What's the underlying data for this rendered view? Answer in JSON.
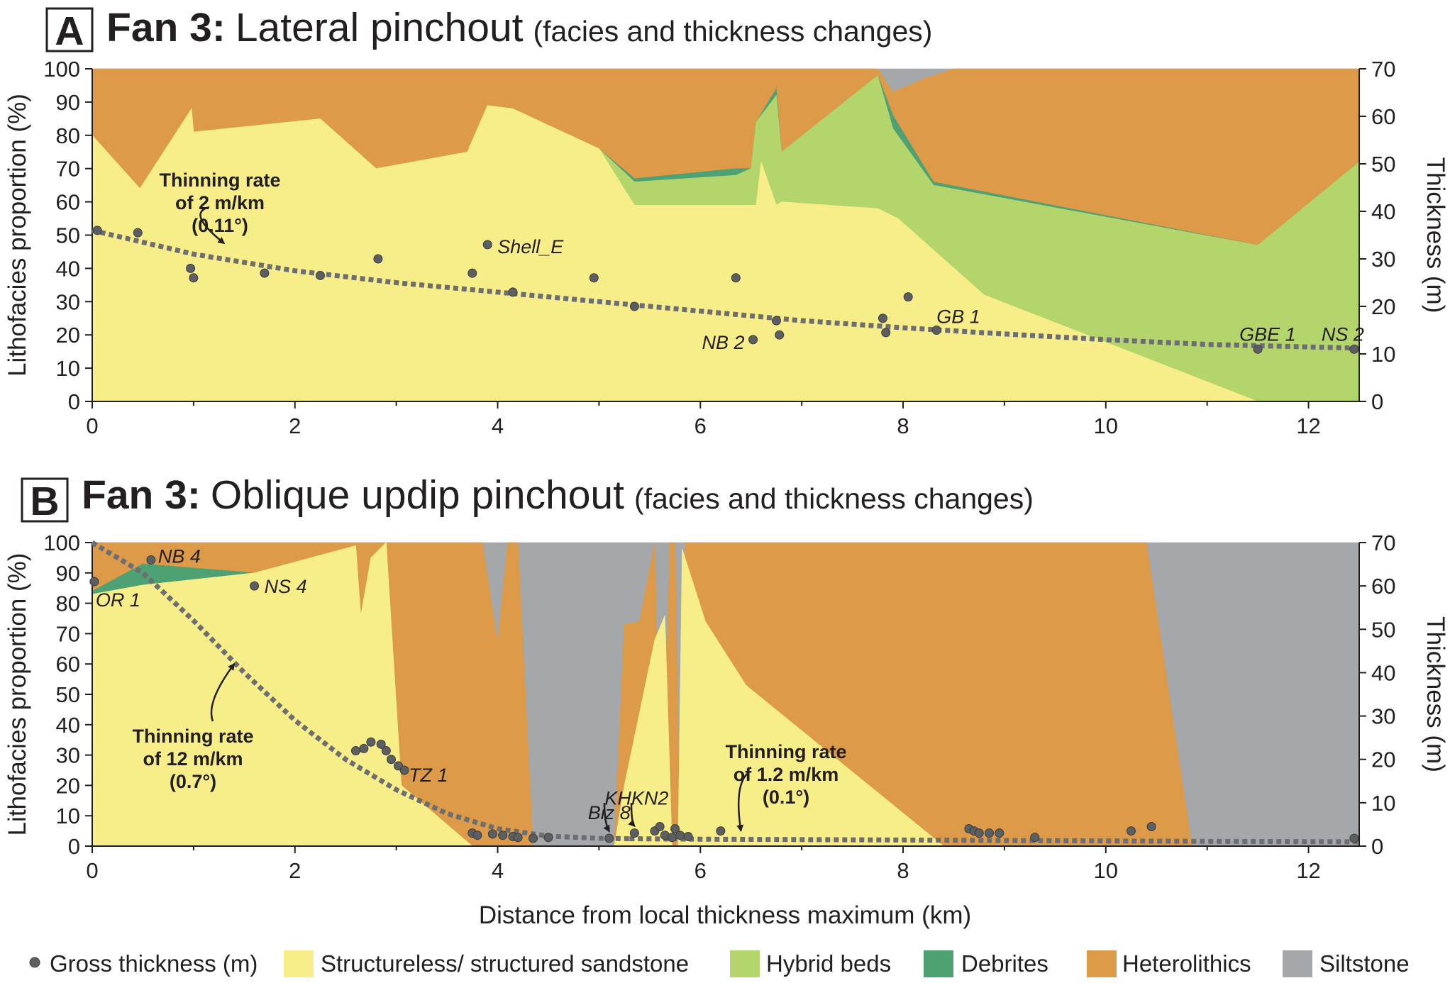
{
  "chart_data": [
    {
      "type": "area",
      "panel_letter": "A",
      "title_bold": "Fan 3:",
      "title": "Lateral pinchout",
      "subtitle": "(facies and thickness changes)",
      "xlabel": "Distance from local thickness maximum (km)",
      "ylabel_left": "Lithofacies proportion (%)",
      "ylabel_right": "Thickness (m)",
      "xlim": [
        0,
        12.5
      ],
      "ylim_left": [
        0,
        100
      ],
      "ylim_right": [
        0,
        70
      ],
      "xticks": [
        "0",
        "2",
        "4",
        "6",
        "8",
        "10",
        "12"
      ],
      "yticks_left": [
        "0",
        "10",
        "20",
        "30",
        "40",
        "50",
        "60",
        "70",
        "80",
        "90",
        "100"
      ],
      "yticks_right": [
        "0",
        "10",
        "20",
        "30",
        "40",
        "50",
        "60",
        "70"
      ],
      "grid": false,
      "facies_boundaries": {
        "sandstone_top": [
          [
            0,
            80
          ],
          [
            0.47,
            64
          ],
          [
            0.98,
            88
          ],
          [
            1.0,
            81
          ],
          [
            2.25,
            85
          ],
          [
            2.8,
            70
          ],
          [
            3.7,
            75
          ],
          [
            3.9,
            89
          ],
          [
            4.15,
            88
          ],
          [
            5.0,
            76
          ],
          [
            5.35,
            59
          ],
          [
            6.55,
            59
          ],
          [
            6.6,
            72
          ],
          [
            6.75,
            59
          ],
          [
            6.8,
            60
          ],
          [
            7.75,
            58
          ],
          [
            7.95,
            55
          ],
          [
            8.8,
            32
          ],
          [
            11.5,
            0
          ],
          [
            12.5,
            0
          ]
        ],
        "hybrid_top": [
          [
            0,
            80
          ],
          [
            0.47,
            64
          ],
          [
            0.98,
            88
          ],
          [
            1.0,
            81
          ],
          [
            2.25,
            85
          ],
          [
            2.8,
            70
          ],
          [
            3.7,
            75
          ],
          [
            3.9,
            89
          ],
          [
            4.15,
            88
          ],
          [
            5.0,
            76
          ],
          [
            5.35,
            66
          ],
          [
            6.35,
            68
          ],
          [
            6.5,
            70
          ],
          [
            6.55,
            84
          ],
          [
            6.75,
            92
          ],
          [
            6.8,
            75
          ],
          [
            7.75,
            98
          ],
          [
            7.9,
            82
          ],
          [
            8.3,
            65
          ],
          [
            11.5,
            47
          ],
          [
            12.5,
            72
          ]
        ],
        "debrite_top": [
          [
            0,
            80
          ],
          [
            0.47,
            64
          ],
          [
            0.98,
            88
          ],
          [
            1.0,
            81
          ],
          [
            2.25,
            85
          ],
          [
            2.8,
            70
          ],
          [
            3.7,
            75
          ],
          [
            3.9,
            89
          ],
          [
            4.15,
            88
          ],
          [
            5.0,
            76
          ],
          [
            5.35,
            67
          ],
          [
            6.35,
            70
          ],
          [
            6.5,
            70
          ],
          [
            6.55,
            84
          ],
          [
            6.75,
            94
          ],
          [
            6.8,
            75
          ],
          [
            7.75,
            98
          ],
          [
            7.9,
            86
          ],
          [
            8.3,
            66
          ],
          [
            11.5,
            47
          ],
          [
            12.5,
            72
          ]
        ],
        "heterolithic_top": [
          [
            0,
            100
          ],
          [
            7.75,
            100
          ],
          [
            7.9,
            93
          ],
          [
            8.2,
            97
          ],
          [
            8.5,
            100
          ],
          [
            12.5,
            100
          ]
        ]
      },
      "gross_thickness_points": [
        [
          0.05,
          36
        ],
        [
          0.45,
          35.5
        ],
        [
          0.97,
          28
        ],
        [
          1.0,
          26
        ],
        [
          1.7,
          27
        ],
        [
          2.25,
          26.5
        ],
        [
          2.82,
          30
        ],
        [
          3.75,
          27
        ],
        [
          3.9,
          33
        ],
        [
          4.15,
          23
        ],
        [
          4.95,
          26
        ],
        [
          5.35,
          20
        ],
        [
          6.35,
          26
        ],
        [
          6.52,
          13
        ],
        [
          6.75,
          17
        ],
        [
          6.78,
          14
        ],
        [
          7.8,
          17.5
        ],
        [
          7.83,
          14.5
        ],
        [
          8.05,
          22
        ],
        [
          8.33,
          15
        ],
        [
          11.5,
          11
        ],
        [
          12.45,
          11
        ]
      ],
      "well_labels": [
        {
          "text": "Shell_E",
          "x": 3.9,
          "y": 33
        },
        {
          "text": "NB 2",
          "x": 6.52,
          "y": 13
        },
        {
          "text": "GB 1",
          "x": 8.33,
          "y": 15
        },
        {
          "text": "GBE 1",
          "x": 11.5,
          "y": 11
        },
        {
          "text": "NS 2",
          "x": 12.45,
          "y": 11
        }
      ],
      "trend_line": [
        [
          0,
          36
        ],
        [
          1,
          31
        ],
        [
          2,
          27.5
        ],
        [
          3,
          25
        ],
        [
          4,
          23
        ],
        [
          5,
          21
        ],
        [
          6,
          19
        ],
        [
          7,
          17
        ],
        [
          8,
          15.5
        ],
        [
          9,
          14.2
        ],
        [
          10,
          13
        ],
        [
          11,
          12
        ],
        [
          12.5,
          11.2
        ]
      ],
      "annotations": [
        {
          "lines": [
            "Thinning rate",
            "of 2 m/km",
            "(0.11°)"
          ],
          "arrow_to": [
            1.3,
            31.5
          ]
        }
      ]
    },
    {
      "type": "area",
      "panel_letter": "B",
      "title_bold": "Fan 3:",
      "title": "Oblique updip pinchout",
      "subtitle": "(facies and thickness changes)",
      "xlabel": "Distance from local thickness maximum (km)",
      "ylabel_left": "Lithofacies proportion (%)",
      "ylabel_right": "Thickness (m)",
      "xlim": [
        0,
        12.5
      ],
      "ylim_left": [
        0,
        100
      ],
      "ylim_right": [
        0,
        70
      ],
      "xticks": [
        "0",
        "2",
        "4",
        "6",
        "8",
        "10",
        "12"
      ],
      "yticks_left": [
        "0",
        "10",
        "20",
        "30",
        "40",
        "50",
        "60",
        "70",
        "80",
        "90",
        "100"
      ],
      "yticks_right": [
        "0",
        "10",
        "20",
        "30",
        "40",
        "50",
        "60",
        "70"
      ],
      "grid": false,
      "facies_boundaries": {
        "sandstone_top": [
          [
            0,
            83
          ],
          [
            0.5,
            86
          ],
          [
            1.6,
            90
          ],
          [
            2.6,
            99
          ],
          [
            2.65,
            76
          ],
          [
            2.75,
            95
          ],
          [
            2.9,
            100
          ],
          [
            3.05,
            20
          ],
          [
            3.75,
            0
          ],
          [
            5.15,
            0
          ],
          [
            5.25,
            20
          ],
          [
            5.55,
            68
          ],
          [
            5.65,
            76
          ],
          [
            5.72,
            0
          ],
          [
            5.78,
            0
          ],
          [
            5.82,
            98
          ],
          [
            6.05,
            74
          ],
          [
            6.45,
            53
          ],
          [
            8.4,
            0
          ],
          [
            12.5,
            0
          ]
        ],
        "hybrid_top": [
          [
            0,
            83
          ],
          [
            0.5,
            86
          ],
          [
            1.6,
            90
          ],
          [
            2.6,
            99
          ],
          [
            2.65,
            76
          ],
          [
            2.75,
            95
          ],
          [
            2.9,
            100
          ],
          [
            3.05,
            20
          ],
          [
            3.75,
            0
          ],
          [
            5.15,
            0
          ],
          [
            5.25,
            20
          ],
          [
            5.55,
            68
          ],
          [
            5.65,
            76
          ],
          [
            5.72,
            0
          ],
          [
            5.78,
            0
          ],
          [
            5.82,
            98
          ],
          [
            6.05,
            74
          ],
          [
            6.45,
            53
          ],
          [
            8.4,
            0
          ],
          [
            12.5,
            0
          ]
        ],
        "debrite_top": [
          [
            0,
            84
          ],
          [
            0.5,
            93
          ],
          [
            1.6,
            90
          ],
          [
            2.6,
            99
          ],
          [
            2.65,
            76
          ],
          [
            2.75,
            95
          ],
          [
            2.9,
            100
          ],
          [
            3.05,
            20
          ],
          [
            3.75,
            0
          ],
          [
            5.15,
            0
          ],
          [
            5.25,
            20
          ],
          [
            5.55,
            68
          ],
          [
            5.65,
            76
          ],
          [
            5.72,
            0
          ],
          [
            5.78,
            0
          ],
          [
            5.82,
            98
          ],
          [
            6.05,
            74
          ],
          [
            6.45,
            53
          ],
          [
            8.4,
            0
          ],
          [
            12.5,
            0
          ]
        ],
        "heterolithic_top": [
          [
            0,
            100
          ],
          [
            3.8,
            100
          ],
          [
            3.85,
            100
          ],
          [
            4.0,
            67
          ],
          [
            4.1,
            100
          ],
          [
            4.2,
            100
          ],
          [
            4.35,
            0
          ],
          [
            5.15,
            0
          ],
          [
            5.25,
            73
          ],
          [
            5.4,
            74
          ],
          [
            5.55,
            100
          ],
          [
            5.62,
            0
          ],
          [
            5.7,
            100
          ],
          [
            5.75,
            100
          ],
          [
            5.8,
            0
          ],
          [
            5.85,
            100
          ],
          [
            10.4,
            100
          ],
          [
            10.85,
            0
          ],
          [
            12.5,
            0
          ]
        ]
      },
      "gross_thickness_points": [
        [
          0.02,
          61
        ],
        [
          0.58,
          66
        ],
        [
          1.6,
          60
        ],
        [
          2.6,
          22
        ],
        [
          2.68,
          22.5
        ],
        [
          2.75,
          24
        ],
        [
          2.85,
          23.5
        ],
        [
          2.9,
          22
        ],
        [
          2.95,
          20
        ],
        [
          3.02,
          18.5
        ],
        [
          3.08,
          17.5
        ],
        [
          3.75,
          3
        ],
        [
          3.8,
          2.5
        ],
        [
          3.95,
          2.8
        ],
        [
          4.05,
          2.5
        ],
        [
          4.15,
          2.2
        ],
        [
          4.2,
          2
        ],
        [
          4.35,
          1.8
        ],
        [
          4.5,
          2
        ],
        [
          5.1,
          1.8
        ],
        [
          5.35,
          3
        ],
        [
          5.55,
          3.5
        ],
        [
          5.6,
          4.5
        ],
        [
          5.65,
          2.5
        ],
        [
          5.72,
          2
        ],
        [
          5.75,
          4
        ],
        [
          5.8,
          2.5
        ],
        [
          5.88,
          2.2
        ],
        [
          6.2,
          3.5
        ],
        [
          8.65,
          4
        ],
        [
          8.7,
          3.5
        ],
        [
          8.75,
          3
        ],
        [
          8.85,
          3
        ],
        [
          8.95,
          3
        ],
        [
          9.3,
          2
        ],
        [
          10.25,
          3.5
        ],
        [
          10.45,
          4.5
        ],
        [
          12.45,
          1.8
        ]
      ],
      "well_labels": [
        {
          "text": "NB 4",
          "x": 0.58,
          "y": 66
        },
        {
          "text": "OR 1",
          "x": 0.02,
          "y": 61
        },
        {
          "text": "NS 4",
          "x": 1.6,
          "y": 60
        },
        {
          "text": "TZ 1",
          "x": 3.08,
          "y": 17.5
        },
        {
          "text": "KHKN2",
          "x": 5.35,
          "y": 3
        },
        {
          "text": "Biz 8",
          "x": 5.1,
          "y": 1.8
        }
      ],
      "trend_lines": [
        [
          [
            0,
            70
          ],
          [
            0.5,
            63
          ],
          [
            1,
            52
          ],
          [
            1.5,
            40
          ],
          [
            2,
            29
          ],
          [
            2.5,
            20
          ],
          [
            3,
            13
          ],
          [
            3.5,
            7.5
          ],
          [
            4,
            4
          ],
          [
            4.5,
            2.3
          ],
          [
            5,
            1.8
          ],
          [
            5.3,
            1.7
          ]
        ],
        [
          [
            5.3,
            1.7
          ],
          [
            6,
            1.6
          ],
          [
            7,
            1.5
          ],
          [
            8,
            1.4
          ],
          [
            9,
            1.3
          ],
          [
            10,
            1.2
          ],
          [
            11,
            1.1
          ],
          [
            12.5,
            1.0
          ]
        ]
      ],
      "annotations": [
        {
          "lines": [
            "Thinning rate",
            "of 12 m/km",
            "(0.7°)"
          ],
          "arrow_to": [
            1.4,
            40
          ]
        },
        {
          "lines": [
            "Thinning rate",
            "of 1.2 m/km",
            "(0.1°)"
          ],
          "arrow_to": [
            6.4,
            1.6
          ]
        },
        {
          "arrow_only": true,
          "arrow_to": [
            5.1,
            1.8
          ]
        },
        {
          "arrow_only": true,
          "arrow_to": [
            5.35,
            3
          ]
        }
      ]
    }
  ],
  "legend": {
    "items": [
      {
        "key": "gross",
        "label": "Gross thickness (m)",
        "symbol": "dot",
        "color": "#5d5e60"
      },
      {
        "key": "sandstone",
        "label": "Structureless/ structured sandstone",
        "symbol": "square",
        "color": "#f8ee89"
      },
      {
        "key": "hybrid",
        "label": "Hybrid beds",
        "symbol": "square",
        "color": "#b4d56b"
      },
      {
        "key": "debrite",
        "label": "Debrites",
        "symbol": "square",
        "color": "#4ea172"
      },
      {
        "key": "heterolithic",
        "label": "Heterolithics",
        "symbol": "square",
        "color": "#dd9a48"
      },
      {
        "key": "siltstone",
        "label": "Siltstone",
        "symbol": "square",
        "color": "#a5a8ab"
      }
    ]
  },
  "colors": {
    "sandstone": "#f8ee89",
    "hybrid": "#b4d56b",
    "debrite": "#4ea172",
    "heterolithic": "#dd9a48",
    "siltstone": "#a5a8ab",
    "point": "#5d5e60",
    "trend": "#6d6e71",
    "axis": "#231f20"
  }
}
